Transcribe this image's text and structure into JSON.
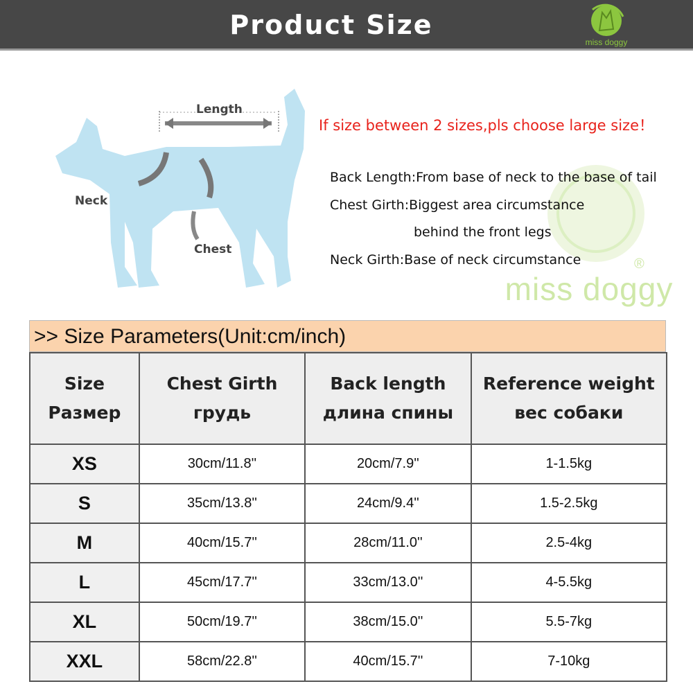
{
  "header": {
    "title": "Product Size",
    "brand": "miss doggy"
  },
  "diagram": {
    "length_label": "Length",
    "neck_label": "Neck",
    "chest_label": "Chest",
    "dog_color": "#bfe3f2"
  },
  "note": "If size between 2 sizes,pls choose large size！",
  "descriptions": [
    "Back Length:From base of neck to the base of tail",
    "Chest Girth:Biggest area circumstance",
    "behind the front legs",
    "Neck Girth:Base of neck circumstance"
  ],
  "watermark": {
    "text": "miss doggy",
    "registered": "®"
  },
  "table": {
    "title": ">> Size Parameters(Unit:cm/inch)",
    "columns": [
      {
        "en": "Size",
        "ru": "Размер"
      },
      {
        "en": "Chest Girth",
        "ru": "грудь"
      },
      {
        "en": "Back length",
        "ru": "длина спины"
      },
      {
        "en": "Reference weight",
        "ru": "вес собаки"
      }
    ],
    "rows": [
      [
        "XS",
        "30cm/11.8''",
        "20cm/7.9''",
        "1-1.5kg"
      ],
      [
        "S",
        "35cm/13.8''",
        "24cm/9.4''",
        "1.5-2.5kg"
      ],
      [
        "M",
        "40cm/15.7''",
        "28cm/11.0''",
        "2.5-4kg"
      ],
      [
        "L",
        "45cm/17.7''",
        "33cm/13.0''",
        "4-5.5kg"
      ],
      [
        "XL",
        "50cm/19.7''",
        "38cm/15.0''",
        "5.5-7kg"
      ],
      [
        "XXL",
        "58cm/22.8''",
        "40cm/15.7''",
        "7-10kg"
      ]
    ]
  },
  "colors": {
    "header_bg": "#474747",
    "note": "#e8221b",
    "title_bar": "#fbd3ad",
    "brand_green": "#8cc63f"
  }
}
